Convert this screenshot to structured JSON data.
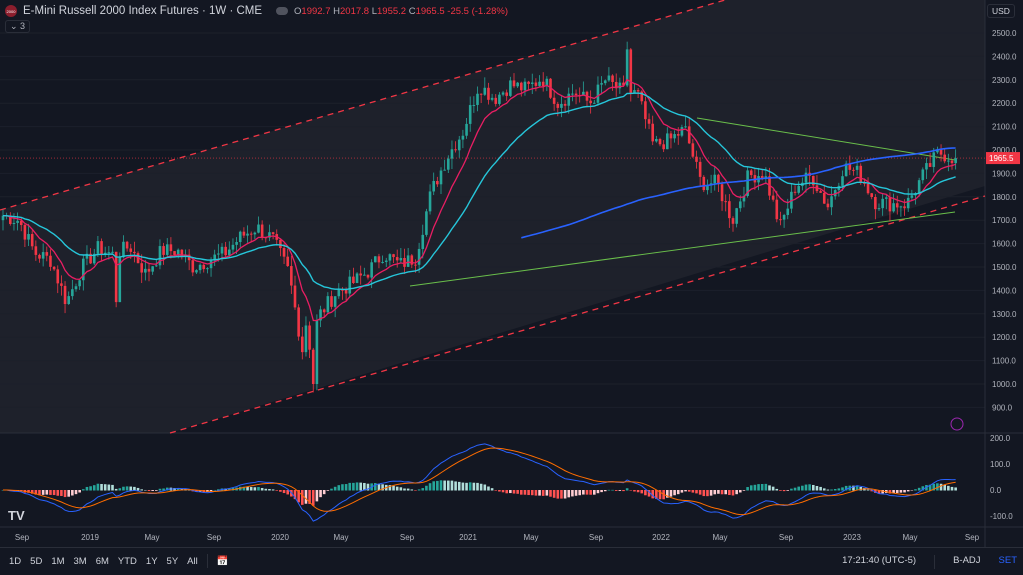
{
  "header": {
    "title": "E-Mini Russell 2000 Index Futures · 1W · CME",
    "logo_text": "2000",
    "o": "1992.7",
    "h": "2017.8",
    "l": "1955.2",
    "c": "1965.5",
    "change": "-25.5 (-1.28%)",
    "indicators_count": "3"
  },
  "currency": "USD",
  "price_axis": [
    "2500.0",
    "2400.0",
    "2300.0",
    "2200.0",
    "2100.0",
    "2000.0",
    "1900.0",
    "1800.0",
    "1700.0",
    "1600.0",
    "1500.0",
    "1400.0",
    "1300.0",
    "1200.0",
    "1100.0",
    "1000.0",
    "900.0"
  ],
  "last_price": "1965.5",
  "macd_axis": [
    "200.0",
    "100.0",
    "0.0",
    "-100.0"
  ],
  "time_axis": [
    "Sep",
    "2019",
    "May",
    "Sep",
    "2020",
    "May",
    "Sep",
    "2021",
    "May",
    "Sep",
    "2022",
    "May",
    "Sep",
    "2023",
    "May",
    "Sep"
  ],
  "ranges": [
    "1D",
    "5D",
    "1M",
    "3M",
    "6M",
    "YTD",
    "1Y",
    "5Y",
    "All"
  ],
  "clock": "17:21:40 (UTC-5)",
  "badj": "B-ADJ",
  "set": "SET",
  "colors": {
    "up": "#26a69a",
    "down": "#f23645",
    "ema": "#e91e63",
    "sma50": "#26c6da",
    "sma200": "#2962ff",
    "channel": "#f23645",
    "trend": "#6abf4b"
  },
  "chart_data": {
    "type": "candlestick",
    "interval": "1W",
    "monthly_closes_from_2018_08": [
      1720,
      1700,
      1560,
      1530,
      1350,
      1500,
      1580,
      1550,
      1590,
      1470,
      1570,
      1570,
      1500,
      1530,
      1560,
      1630,
      1670,
      1620,
      1480,
      1100,
      1300,
      1390,
      1430,
      1480,
      1560,
      1510,
      1540,
      1820,
      1970,
      2080,
      2280,
      2220,
      2280,
      2260,
      2310,
      2200,
      2250,
      2200,
      2300,
      2250,
      2240,
      2020,
      2040,
      2090,
      1860,
      1860,
      1700,
      1890,
      1900,
      1670,
      1850,
      1890,
      1760,
      1930,
      1900,
      1780,
      1770,
      1770,
      1890,
      1990,
      1965.5
    ]
  }
}
